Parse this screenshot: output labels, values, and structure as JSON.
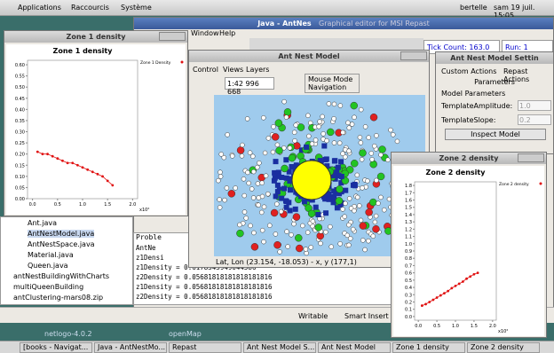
{
  "ui": {
    "topbar": {
      "menus": [
        "Applications",
        "Raccourcis",
        "Système"
      ],
      "user": "bertelle",
      "clock": "sam 19 juil. 15:05"
    },
    "java_window": {
      "title": "Java - AntNes",
      "menu_window": "Window",
      "menu_help": "Help",
      "repast_title": "Graphical editor for MSI Repast",
      "tick": "Tick Count: 163.0",
      "run": "Run: 1"
    },
    "zone1_window": {
      "title": "Zone 1 density"
    },
    "zone2_window": {
      "title": "Zone 2 density"
    },
    "nest_window": {
      "title": "Ant Nest Model",
      "menus": [
        "Control",
        "Views",
        "Layers"
      ],
      "scale": "1:42 996 668",
      "mouse_mode": "Mouse Mode",
      "navigation": "Navigation",
      "status": "Lat, Lon (23.154, -18.053) - x, y (177,1)"
    },
    "settings_window": {
      "title": "Ant Nest Model Settin",
      "tabs": [
        "Custom Actions",
        "Repast Actions"
      ],
      "section": "Parameters",
      "group": "Model Parameters",
      "params": [
        {
          "name": "TemplateAmplitude:",
          "value": "1.0"
        },
        {
          "name": "TemplateSlope:",
          "value": "0.2"
        }
      ],
      "button": "Inspect Model"
    },
    "tree": [
      "Ant.java",
      "AntNestModel.java",
      "AntNestSpace.java",
      "Material.java",
      "Queen.java",
      "antNestBuildingWithCharts",
      "multiQueenBuilding",
      "antClustering-mars08.zip"
    ],
    "console": {
      "tab": "Proble",
      "lines": [
        "AntNe",
        "z1Densi",
        "z1Density = 0.6178343949044586",
        "z2Density = 0.05681818181818181816",
        "z1Density = 0.05681818181818181816",
        "z2Density = 0.05681818181818181816"
      ]
    },
    "statusbar": {
      "writable": "Writable",
      "insert": "Smart Insert",
      "pos": "1:"
    },
    "desktop": {
      "left": "netlogo-4.0.2",
      "right": "openMap"
    },
    "taskbar": [
      "[books - Navigat...",
      "Java - AntNestMo...",
      "Repast",
      "Ant Nest Model S...",
      "Ant Nest Model",
      "Zone 1 density",
      "Zone 2 density"
    ]
  },
  "chart_data": [
    {
      "type": "line",
      "title": "Zone 1 density",
      "x_multiplier": "x10²",
      "x": [
        0.1,
        0.2,
        0.3,
        0.4,
        0.5,
        0.6,
        0.7,
        0.8,
        0.9,
        1.0,
        1.1,
        1.2,
        1.3,
        1.4,
        1.5,
        1.6
      ],
      "series": [
        {
          "name": "Zone 1 Density",
          "color": "#e01010",
          "values": [
            0.21,
            0.2,
            0.2,
            0.19,
            0.18,
            0.17,
            0.16,
            0.16,
            0.15,
            0.14,
            0.13,
            0.12,
            0.11,
            0.1,
            0.08,
            0.06
          ]
        }
      ],
      "xlim": [
        -0.1,
        2.1
      ],
      "ylim": [
        0,
        0.62
      ],
      "xticks": [
        {
          "value": 0,
          "label": "0.0"
        },
        {
          "value": 0.5,
          "label": "0.5"
        },
        {
          "value": 1,
          "label": "1.0"
        },
        {
          "value": 1.5,
          "label": "1.5"
        },
        {
          "value": 2,
          "label": "2.0"
        }
      ],
      "yticks": [
        {
          "value": 0,
          "label": "0.00"
        },
        {
          "value": 0.05,
          "label": "0.05"
        },
        {
          "value": 0.1,
          "label": "0.10"
        },
        {
          "value": 0.15,
          "label": "0.15"
        },
        {
          "value": 0.2,
          "label": "0.20"
        },
        {
          "value": 0.25,
          "label": "0.25"
        },
        {
          "value": 0.3,
          "label": "0.30"
        },
        {
          "value": 0.35,
          "label": "0.35"
        },
        {
          "value": 0.4,
          "label": "0.40"
        },
        {
          "value": 0.45,
          "label": "0.45"
        },
        {
          "value": 0.5,
          "label": "0.50"
        },
        {
          "value": 0.55,
          "label": "0.55"
        },
        {
          "value": 0.6,
          "label": "0.60"
        }
      ],
      "legend": "top-right"
    },
    {
      "type": "line",
      "title": "Zone 2 density",
      "x_multiplier": "x10²",
      "x": [
        0.1,
        0.2,
        0.3,
        0.4,
        0.5,
        0.6,
        0.7,
        0.8,
        0.9,
        1.0,
        1.1,
        1.2,
        1.3,
        1.4,
        1.5,
        1.6
      ],
      "series": [
        {
          "name": "Zone 2 density",
          "color": "#e01010",
          "values": [
            0.15,
            0.17,
            0.2,
            0.23,
            0.26,
            0.29,
            0.32,
            0.35,
            0.39,
            0.42,
            0.45,
            0.48,
            0.52,
            0.55,
            0.58,
            0.6
          ]
        }
      ],
      "xlim": [
        -0.1,
        2.1
      ],
      "ylim": [
        -0.05,
        1.85
      ],
      "xticks": [
        {
          "value": 0,
          "label": "0.0"
        },
        {
          "value": 0.5,
          "label": "0.5"
        },
        {
          "value": 1,
          "label": "1.0"
        },
        {
          "value": 1.5,
          "label": "1.5"
        },
        {
          "value": 2,
          "label": "2.0"
        }
      ],
      "yticks": [
        {
          "value": 0,
          "label": "0.0"
        },
        {
          "value": 0.1,
          "label": "0.1"
        },
        {
          "value": 0.2,
          "label": "0.2"
        },
        {
          "value": 0.3,
          "label": "0.3"
        },
        {
          "value": 0.4,
          "label": "0.4"
        },
        {
          "value": 0.5,
          "label": "0.5"
        },
        {
          "value": 0.6,
          "label": "0.6"
        },
        {
          "value": 0.7,
          "label": "0.7"
        },
        {
          "value": 0.8,
          "label": "0.8"
        },
        {
          "value": 0.9,
          "label": "0.9"
        },
        {
          "value": 1,
          "label": "1.0"
        },
        {
          "value": 1.1,
          "label": "1.1"
        },
        {
          "value": 1.2,
          "label": "1.2"
        },
        {
          "value": 1.3,
          "label": "1.3"
        },
        {
          "value": 1.4,
          "label": "1.4"
        },
        {
          "value": 1.5,
          "label": "1.5"
        },
        {
          "value": 1.6,
          "label": "1.6"
        },
        {
          "value": 1.7,
          "label": "1.7"
        },
        {
          "value": 1.8,
          "label": "1.8"
        }
      ],
      "legend": "top-right"
    }
  ]
}
